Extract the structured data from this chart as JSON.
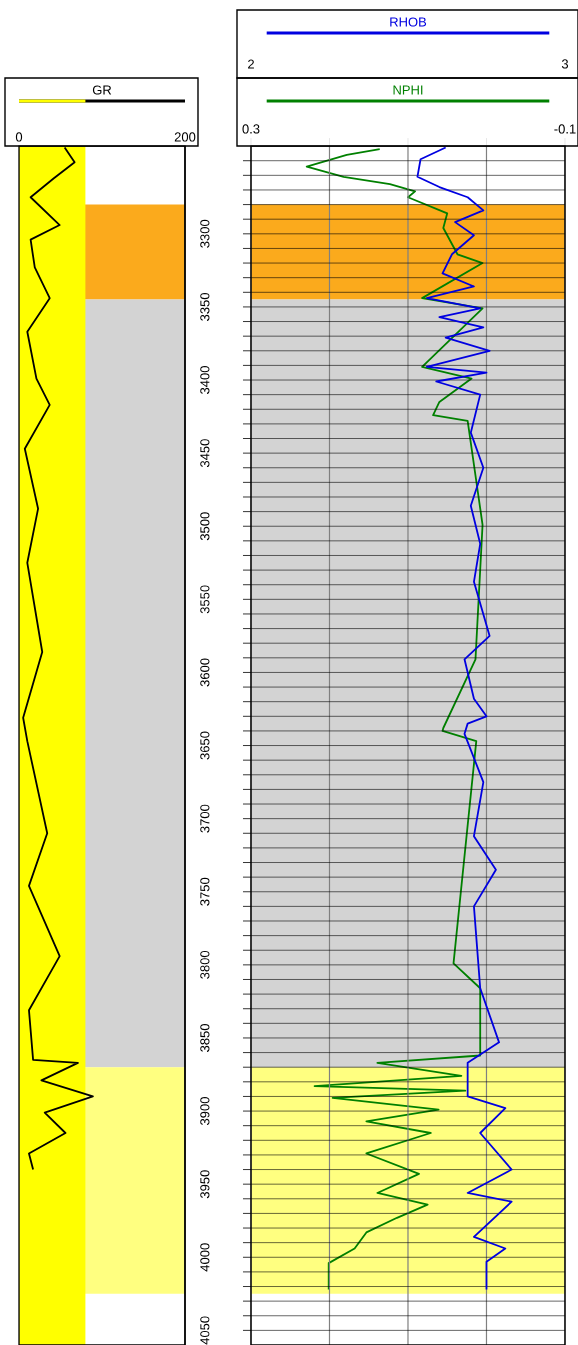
{
  "chart_data": [
    {
      "type": "line",
      "legend": "top",
      "tick_labels": "x",
      "series": [
        {
          "name": "GR",
          "color": "#000000",
          "x": [
            55,
            67,
            42,
            14,
            49,
            14,
            19,
            37,
            10,
            21,
            37,
            7,
            23,
            10,
            28,
            5,
            10,
            34,
            12,
            49,
            12,
            17,
            71,
            27,
            89,
            31,
            56,
            12,
            17
          ],
          "values": [
            3241,
            3251,
            3262,
            3275,
            3294,
            3304,
            3323,
            3344,
            3367,
            3399,
            3417,
            3447,
            3488,
            3525,
            3586,
            3631,
            3647,
            3710,
            3746,
            3794,
            3831,
            3865,
            3867,
            3879,
            3890,
            3901,
            3915,
            3929,
            3940
          ]
        }
      ],
      "xlim": [
        0,
        200
      ],
      "xticks": [
        0,
        200
      ],
      "ylim": [
        4060,
        3240
      ],
      "bands": [
        {
          "axis": "y",
          "from": 3280,
          "to": 3345,
          "color": "#fbaa1c"
        },
        {
          "axis": "y",
          "from": 3345,
          "to": 3870,
          "color": "#d3d3d3"
        },
        {
          "axis": "y",
          "from": 3870,
          "to": 4025,
          "color": "#ffff80"
        },
        {
          "axis": "x",
          "from": 0,
          "to": 80,
          "color": "#ffff00"
        }
      ]
    },
    {
      "type": "line",
      "legend": "top",
      "grid": true,
      "series": [
        {
          "name": "NPHI",
          "color": "#008000",
          "x": [
            0.136,
            0.178,
            0.229,
            0.182,
            0.123,
            0.091,
            0.1,
            0.05,
            0.055,
            0.037,
            0.005,
            0.082,
            0.005,
            0.082,
            0.019,
            0.06,
            0.068,
            0.024,
            0.005,
            0.014,
            0.055,
            0.056,
            0.013,
            0.042,
            0.008,
            0.008,
            0.139,
            0.032,
            0.219,
            0.027,
            0.196,
            0.061,
            0.153,
            0.071,
            0.153,
            0.086,
            0.139,
            0.075,
            0.114,
            0.153,
            0.168,
            0.201,
            0.201
          ],
          "values": [
            3242,
            3246,
            3254,
            3261,
            3266,
            3271,
            3275,
            3286,
            3296,
            3314,
            3320,
            3344,
            3351,
            3391,
            3399,
            3415,
            3424,
            3428,
            3499,
            3591,
            3638,
            3640,
            3647,
            3799,
            3816,
            3862,
            3867,
            3876,
            3883,
            3886,
            3891,
            3899,
            3907,
            3915,
            3929,
            3943,
            3956,
            3964,
            3973,
            3983,
            3994,
            4004,
            4022
          ]
        },
        {
          "name": "RHOB",
          "color": "#0000e0",
          "axis": "x2",
          "x": [
            2.62,
            2.54,
            2.53,
            2.6,
            2.69,
            2.74,
            2.65,
            2.71,
            2.64,
            2.61,
            2.71,
            2.56,
            2.73,
            2.6,
            2.74,
            2.62,
            2.76,
            2.56,
            2.75,
            2.59,
            2.73,
            2.7,
            2.74,
            2.7,
            2.73,
            2.71,
            2.76,
            2.68,
            2.71,
            2.75,
            2.69,
            2.68,
            2.74,
            2.71,
            2.78,
            2.71,
            2.72,
            2.73,
            2.79,
            2.69,
            2.69,
            2.81,
            2.73,
            2.83,
            2.69,
            2.83,
            2.71,
            2.81,
            2.75,
            2.75
          ],
          "values": [
            3241,
            3249,
            3261,
            3268,
            3275,
            3284,
            3292,
            3301,
            3314,
            3327,
            3336,
            3344,
            3351,
            3357,
            3364,
            3371,
            3380,
            3391,
            3395,
            3401,
            3410,
            3436,
            3460,
            3486,
            3512,
            3538,
            3575,
            3591,
            3618,
            3630,
            3635,
            3642,
            3675,
            3712,
            3735,
            3760,
            3788,
            3816,
            3853,
            3867,
            3890,
            3898,
            3915,
            3940,
            3956,
            3962,
            3986,
            3994,
            4003,
            4022
          ]
        }
      ],
      "xlim": [
        0.3,
        -0.1
      ],
      "xticks": [
        0.3,
        {
          "value": 0.2,
          "label": null
        },
        {
          "value": 0.1,
          "label": null
        },
        {
          "value": 0,
          "label": null
        },
        -0.1
      ],
      "x2lim": [
        2,
        3
      ],
      "x2ticks": [
        2,
        3
      ],
      "ylim": [
        4060,
        3240
      ],
      "yticks": [
        {
          "value": 3250,
          "label": null
        },
        {
          "value": 3260,
          "label": null
        },
        {
          "value": 3270,
          "label": null
        },
        {
          "value": 3280,
          "label": null
        },
        {
          "value": 3290,
          "label": null
        },
        3300,
        {
          "value": 3310,
          "label": null
        },
        {
          "value": 3320,
          "label": null
        },
        {
          "value": 3330,
          "label": null
        },
        {
          "value": 3340,
          "label": null
        },
        3350,
        {
          "value": 3360,
          "label": null
        },
        {
          "value": 3370,
          "label": null
        },
        {
          "value": 3380,
          "label": null
        },
        {
          "value": 3390,
          "label": null
        },
        3400,
        {
          "value": 3410,
          "label": null
        },
        {
          "value": 3420,
          "label": null
        },
        {
          "value": 3430,
          "label": null
        },
        {
          "value": 3440,
          "label": null
        },
        3450,
        {
          "value": 3460,
          "label": null
        },
        {
          "value": 3470,
          "label": null
        },
        {
          "value": 3480,
          "label": null
        },
        {
          "value": 3490,
          "label": null
        },
        3500,
        {
          "value": 3510,
          "label": null
        },
        {
          "value": 3520,
          "label": null
        },
        {
          "value": 3530,
          "label": null
        },
        {
          "value": 3540,
          "label": null
        },
        3550,
        {
          "value": 3560,
          "label": null
        },
        {
          "value": 3570,
          "label": null
        },
        {
          "value": 3580,
          "label": null
        },
        {
          "value": 3590,
          "label": null
        },
        3600,
        {
          "value": 3610,
          "label": null
        },
        {
          "value": 3620,
          "label": null
        },
        {
          "value": 3630,
          "label": null
        },
        {
          "value": 3640,
          "label": null
        },
        3650,
        {
          "value": 3660,
          "label": null
        },
        {
          "value": 3670,
          "label": null
        },
        {
          "value": 3680,
          "label": null
        },
        {
          "value": 3690,
          "label": null
        },
        3700,
        {
          "value": 3710,
          "label": null
        },
        {
          "value": 3720,
          "label": null
        },
        {
          "value": 3730,
          "label": null
        },
        {
          "value": 3740,
          "label": null
        },
        3750,
        {
          "value": 3760,
          "label": null
        },
        {
          "value": 3770,
          "label": null
        },
        {
          "value": 3780,
          "label": null
        },
        {
          "value": 3790,
          "label": null
        },
        3800,
        {
          "value": 3810,
          "label": null
        },
        {
          "value": 3820,
          "label": null
        },
        {
          "value": 3830,
          "label": null
        },
        {
          "value": 3840,
          "label": null
        },
        3850,
        {
          "value": 3860,
          "label": null
        },
        {
          "value": 3870,
          "label": null
        },
        {
          "value": 3880,
          "label": null
        },
        {
          "value": 3890,
          "label": null
        },
        3900,
        {
          "value": 3910,
          "label": null
        },
        {
          "value": 3920,
          "label": null
        },
        {
          "value": 3930,
          "label": null
        },
        {
          "value": 3940,
          "label": null
        },
        3950,
        {
          "value": 3960,
          "label": null
        },
        {
          "value": 3970,
          "label": null
        },
        {
          "value": 3980,
          "label": null
        },
        {
          "value": 3990,
          "label": null
        },
        4000,
        {
          "value": 4010,
          "label": null
        },
        {
          "value": 4020,
          "label": null
        },
        {
          "value": 4030,
          "label": null
        },
        {
          "value": 4040,
          "label": null
        },
        4050
      ],
      "bands": [
        {
          "axis": "y",
          "from": 3280,
          "to": 3345,
          "color": "#fbaa1c"
        },
        {
          "axis": "y",
          "from": 3345,
          "to": 3870,
          "color": "#d3d3d3"
        },
        {
          "axis": "y",
          "from": 3870,
          "to": 4025,
          "color": "#ffff80"
        }
      ]
    }
  ]
}
